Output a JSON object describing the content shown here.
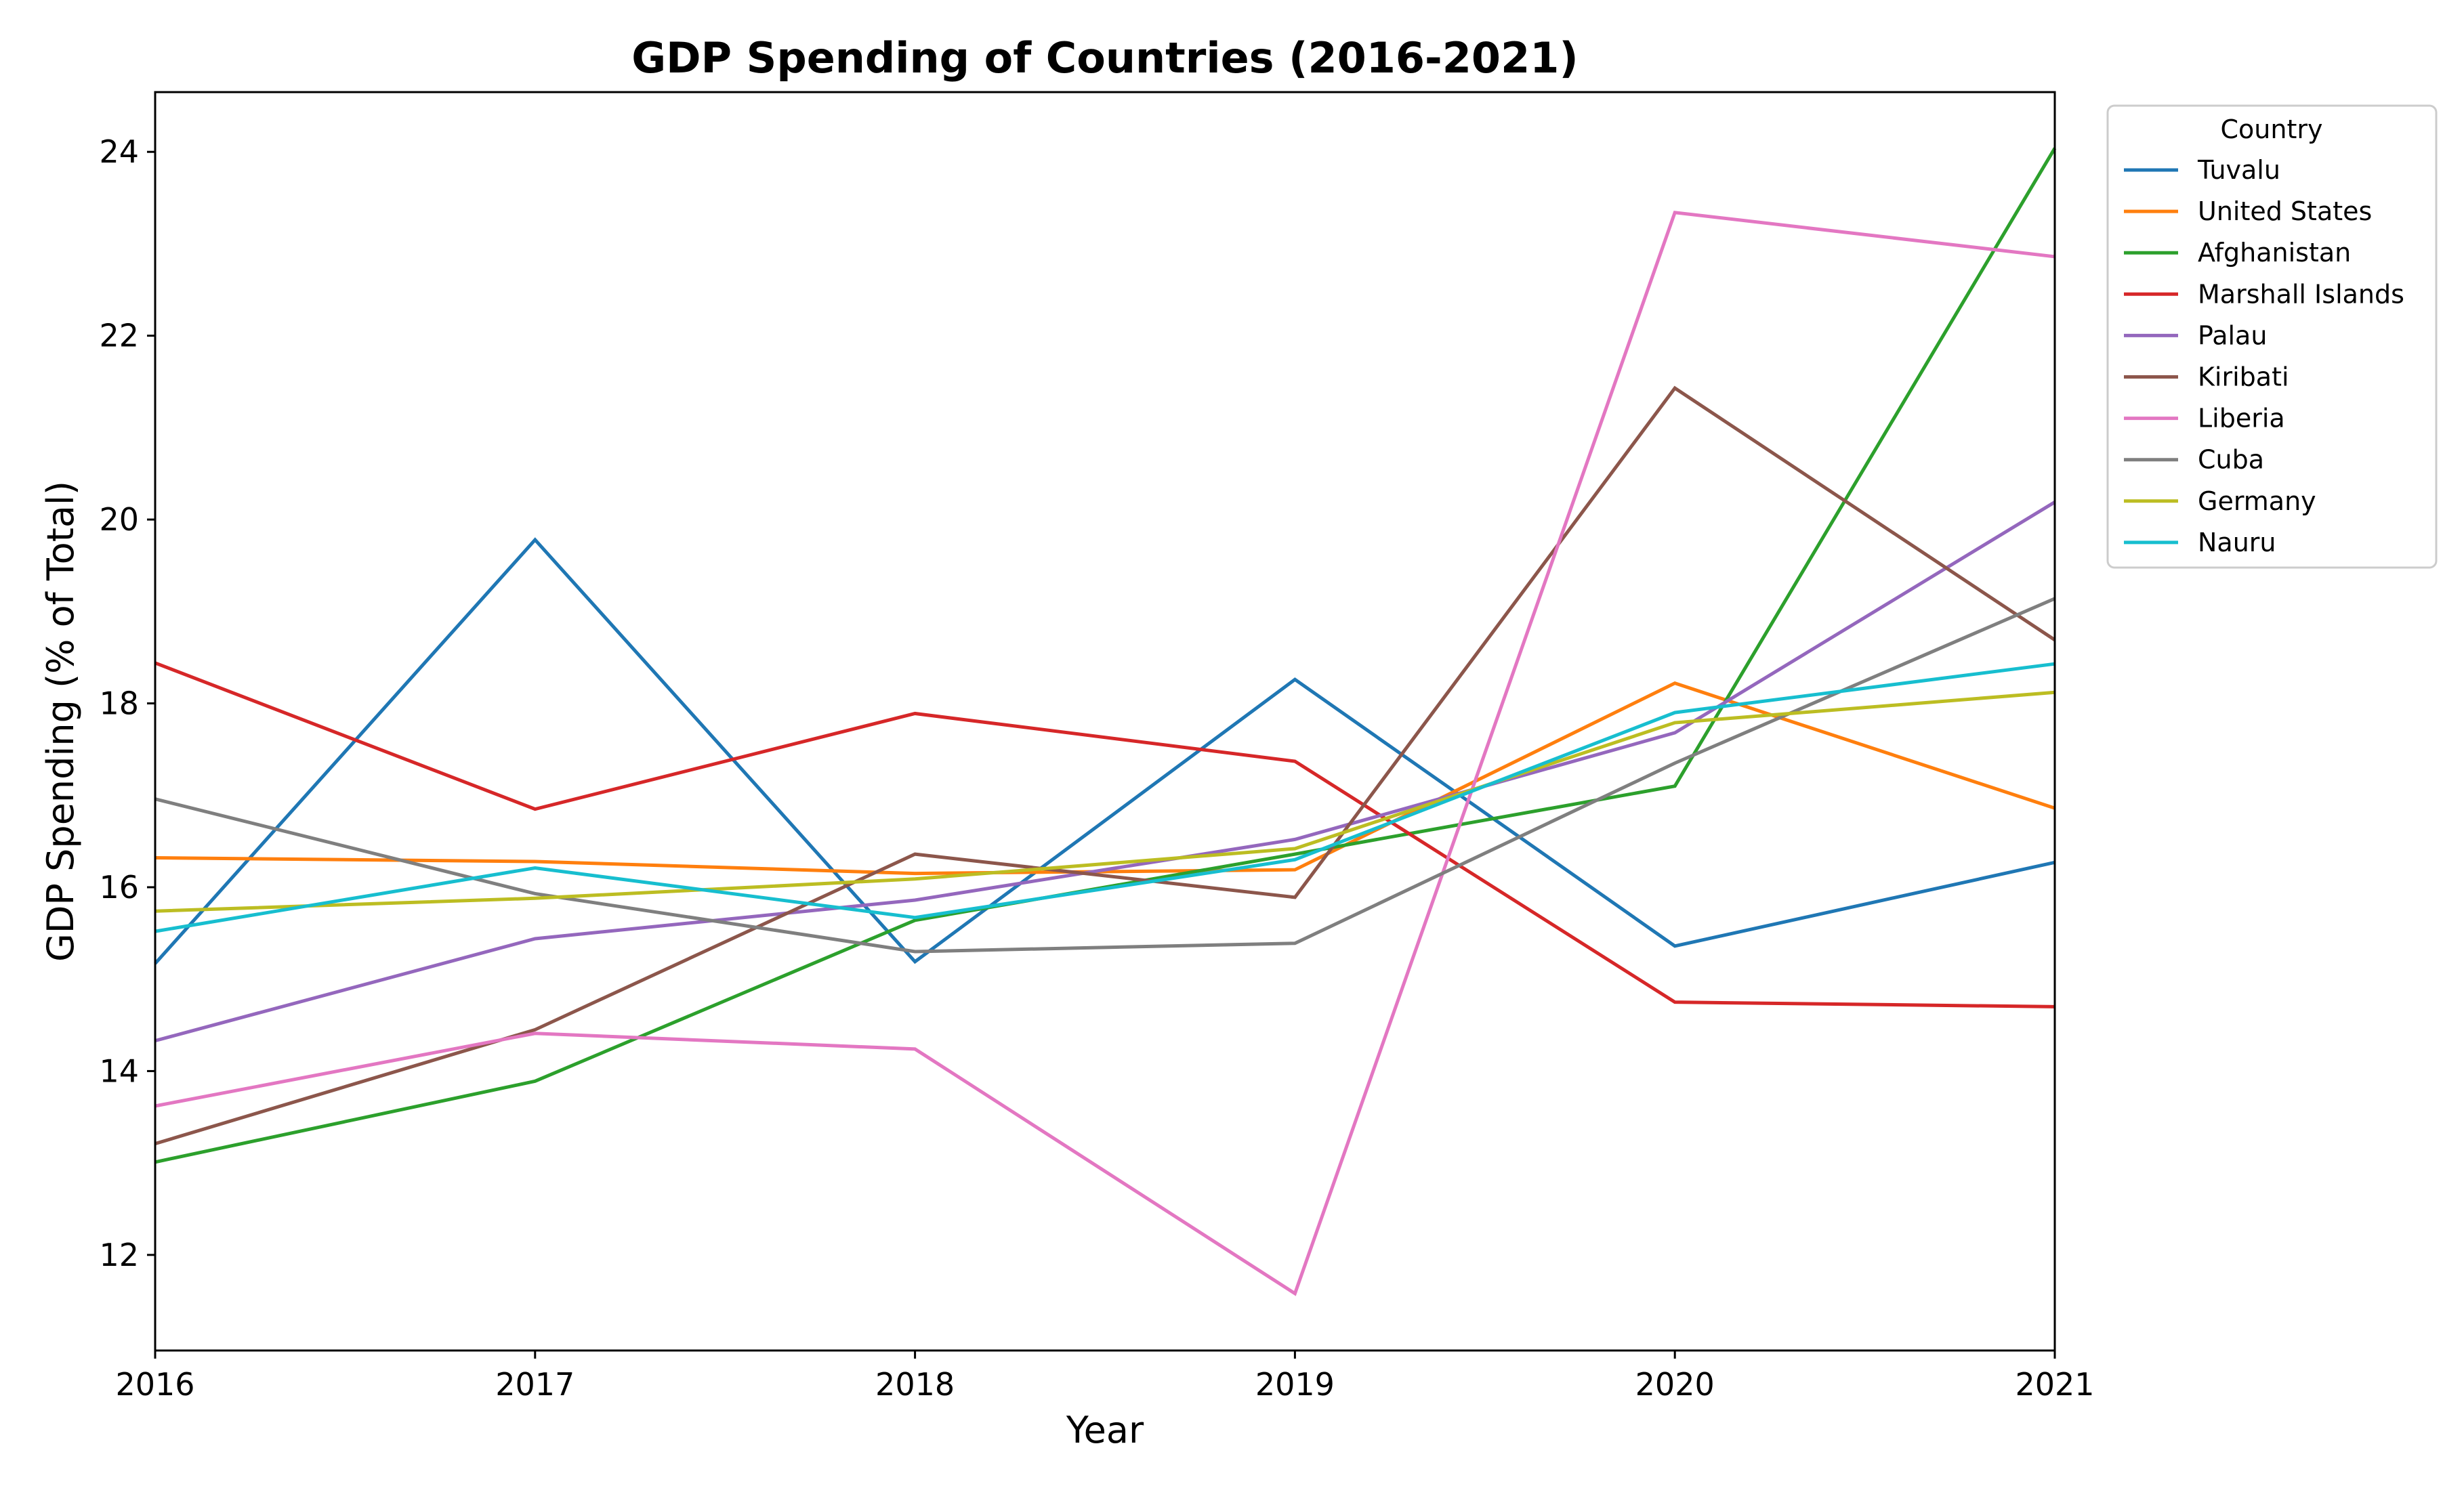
{
  "chart_data": {
    "type": "line",
    "title": "GDP Spending of Countries (2016-2021)",
    "xlabel": "Year",
    "ylabel": "GDP Spending (% of Total)",
    "x": [
      2016,
      2017,
      2018,
      2019,
      2020,
      2021
    ],
    "x_tick_labels": [
      "2016",
      "2017",
      "2018",
      "2019",
      "2020",
      "2021"
    ],
    "y_ticks": [
      12,
      14,
      16,
      18,
      20,
      22,
      24
    ],
    "y_tick_labels": [
      "12",
      "14",
      "16",
      "18",
      "20",
      "22",
      "24"
    ],
    "xlim": [
      2016,
      2021
    ],
    "ylim": [
      10.96,
      24.65
    ],
    "grid": false,
    "legend": {
      "title": "Country",
      "placement": "outside-top-right"
    },
    "series": [
      {
        "name": "Tuvalu",
        "color": "#1f77b4",
        "values": [
          15.17,
          19.78,
          15.19,
          18.26,
          15.36,
          16.27
        ]
      },
      {
        "name": "United States",
        "color": "#ff7f0e",
        "values": [
          16.32,
          16.28,
          16.15,
          16.19,
          18.22,
          16.86
        ]
      },
      {
        "name": "Afghanistan",
        "color": "#2ca02c",
        "values": [
          13.01,
          13.89,
          15.64,
          16.36,
          17.1,
          24.04
        ]
      },
      {
        "name": "Marshall Islands",
        "color": "#d62728",
        "values": [
          18.44,
          16.85,
          17.89,
          17.37,
          14.75,
          14.7
        ]
      },
      {
        "name": "Palau",
        "color": "#9467bd",
        "values": [
          14.33,
          15.44,
          15.86,
          16.52,
          17.68,
          20.19
        ]
      },
      {
        "name": "Kiribati",
        "color": "#8c564b",
        "values": [
          13.21,
          14.45,
          16.36,
          15.89,
          21.43,
          18.69
        ]
      },
      {
        "name": "Liberia",
        "color": "#e377c2",
        "values": [
          13.62,
          14.41,
          14.24,
          11.58,
          23.34,
          22.86
        ]
      },
      {
        "name": "Cuba",
        "color": "#7f7f7f",
        "values": [
          16.96,
          15.93,
          15.3,
          15.39,
          17.35,
          19.14
        ]
      },
      {
        "name": "Germany",
        "color": "#bcbd22",
        "values": [
          15.74,
          15.88,
          16.09,
          16.42,
          17.79,
          18.12
        ]
      },
      {
        "name": "Nauru",
        "color": "#17becf",
        "values": [
          15.52,
          16.21,
          15.67,
          16.3,
          17.9,
          18.43
        ]
      }
    ]
  }
}
